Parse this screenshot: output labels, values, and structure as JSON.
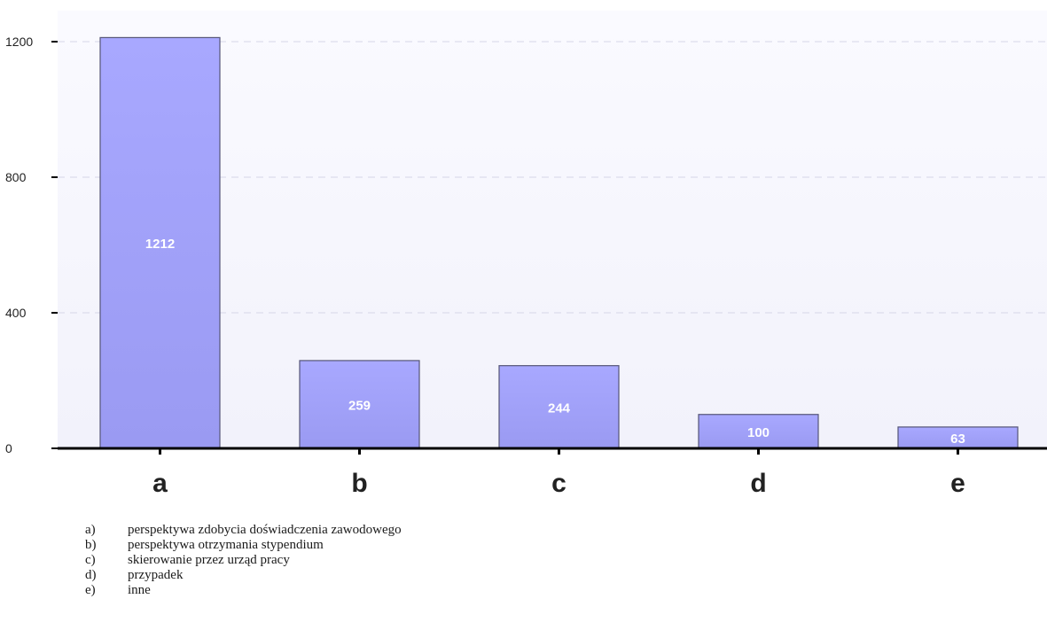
{
  "chart_data": {
    "type": "bar",
    "categories": [
      "a",
      "b",
      "c",
      "d",
      "e"
    ],
    "values": [
      1212,
      259,
      244,
      100,
      63
    ],
    "data_labels": [
      "1212",
      "259",
      "244",
      "100",
      "63"
    ],
    "title": "",
    "xlabel": "",
    "ylabel": "",
    "ylim": [
      0,
      1300
    ],
    "yticks": [
      0,
      400,
      800,
      1200
    ],
    "grid": true,
    "colors": {
      "bar_fill_top": "#a8a8ff",
      "bar_fill_bottom": "#9a9af2",
      "bar_stroke": "#555577",
      "plot_bg_top": "#fafaff",
      "plot_bg_bottom": "#f2f2fb",
      "gridline": "#d6d6e8",
      "axis": "#000000"
    }
  },
  "legend": [
    {
      "key": "a)",
      "text": "perspektywa zdobycia doświadczenia zawodowego"
    },
    {
      "key": "b)",
      "text": "perspektywa otrzymania stypendium"
    },
    {
      "key": "c)",
      "text": "skierowanie przez urząd pracy"
    },
    {
      "key": "d)",
      "text": "przypadek"
    },
    {
      "key": "e)",
      "text": "inne"
    }
  ]
}
